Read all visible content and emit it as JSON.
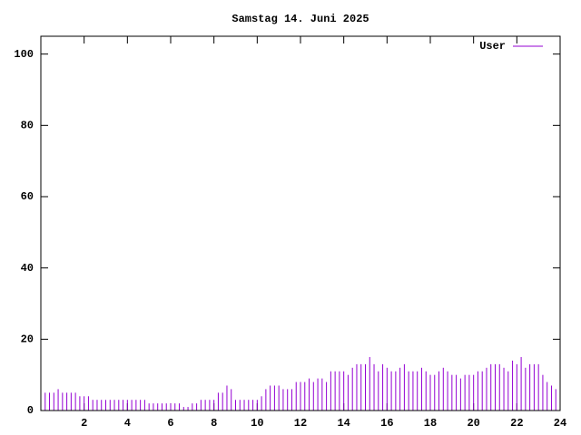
{
  "chart_data": {
    "type": "impulse",
    "title": "Samstag 14. Juni 2025",
    "x": [
      0,
      0.2,
      0.4,
      0.6,
      0.8,
      1,
      1.2,
      1.4,
      1.6,
      1.8,
      2,
      2.2,
      2.4,
      2.6,
      2.8,
      3,
      3.2,
      3.4,
      3.6,
      3.8,
      4,
      4.2,
      4.4,
      4.6,
      4.8,
      5,
      5.2,
      5.4,
      5.6,
      5.8,
      6,
      6.2,
      6.4,
      6.6,
      6.8,
      7,
      7.2,
      7.4,
      7.6,
      7.8,
      8,
      8.2,
      8.4,
      8.6,
      8.8,
      9,
      9.2,
      9.4,
      9.6,
      9.8,
      10,
      10.2,
      10.4,
      10.6,
      10.8,
      11,
      11.2,
      11.4,
      11.6,
      11.8,
      12,
      12.2,
      12.4,
      12.6,
      12.8,
      13,
      13.2,
      13.4,
      13.6,
      13.8,
      14,
      14.2,
      14.4,
      14.6,
      14.8,
      15,
      15.2,
      15.4,
      15.6,
      15.8,
      16,
      16.2,
      16.4,
      16.6,
      16.8,
      17,
      17.2,
      17.4,
      17.6,
      17.8,
      18,
      18.2,
      18.4,
      18.6,
      18.8,
      19,
      19.2,
      19.4,
      19.6,
      19.8,
      20,
      20.2,
      20.4,
      20.6,
      20.8,
      21,
      21.2,
      21.4,
      21.6,
      21.8,
      22,
      22.2,
      22.4,
      22.6,
      22.8,
      23,
      23.2,
      23.4,
      23.6,
      23.8
    ],
    "series": [
      {
        "name": "User",
        "color": "#9400d3",
        "values": [
          5,
          5,
          5,
          5,
          6,
          5,
          5,
          5,
          5,
          4,
          4,
          4,
          3,
          3,
          3,
          3,
          3,
          3,
          3,
          3,
          3,
          3,
          3,
          3,
          3,
          2,
          2,
          2,
          2,
          2,
          2,
          2,
          2,
          1,
          1,
          2,
          2,
          3,
          3,
          3,
          3,
          5,
          5,
          7,
          6,
          3,
          3,
          3,
          3,
          3,
          3,
          4,
          6,
          7,
          7,
          7,
          6,
          6,
          6,
          8,
          8,
          8,
          9,
          8,
          9,
          9,
          8,
          11,
          11,
          11,
          11,
          10,
          12,
          13,
          13,
          13,
          15,
          13,
          11,
          13,
          12,
          11,
          11,
          12,
          13,
          11,
          11,
          11,
          12,
          11,
          10,
          10,
          11,
          12,
          11,
          10,
          10,
          9,
          10,
          10,
          10,
          11,
          11,
          12,
          13,
          13,
          13,
          12,
          11,
          14,
          13,
          15,
          12,
          13,
          13,
          13,
          10,
          8,
          7,
          6
        ]
      }
    ],
    "xlim": [
      0,
      24
    ],
    "xticks": [
      2,
      4,
      6,
      8,
      10,
      12,
      14,
      16,
      18,
      20,
      22,
      24
    ],
    "ylim": [
      0,
      105
    ],
    "yticks": [
      0,
      20,
      40,
      60,
      80,
      100
    ],
    "legend": "top-right"
  }
}
